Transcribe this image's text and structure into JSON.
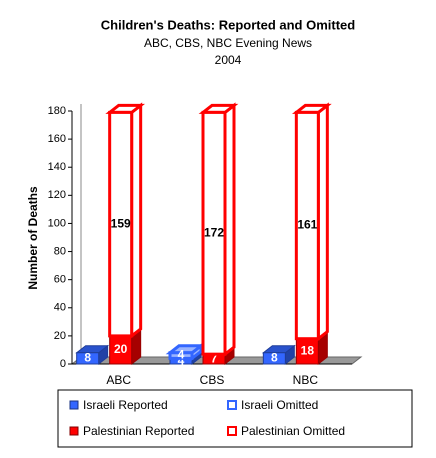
{
  "chart_data": {
    "type": "bar3d-stacked",
    "title": "Children's Deaths: Reported and Omitted",
    "subtitle": "ABC, CBS, NBC Evening News",
    "subtitle2": "2004",
    "y_label": "Number of Deaths",
    "categories": [
      "ABC",
      "CBS",
      "NBC"
    ],
    "series": [
      {
        "name": "Israeli Reported",
        "color": "#3366ff",
        "style": "solid",
        "values": [
          8,
          4,
          8
        ]
      },
      {
        "name": "Israeli Omitted",
        "color": "#3366ff",
        "style": "outline",
        "values": [
          null,
          4,
          null
        ]
      },
      {
        "name": "Palestinian Reported",
        "color": "#ff0000",
        "style": "solid",
        "values": [
          20,
          7,
          18
        ]
      },
      {
        "name": "Palestinian Omitted",
        "color": "#ff0000",
        "style": "outline",
        "values": [
          159,
          172,
          161
        ]
      }
    ],
    "ylim": [
      0,
      180
    ],
    "yticks": [
      0,
      20,
      40,
      60,
      80,
      100,
      120,
      140,
      160,
      180
    ]
  }
}
